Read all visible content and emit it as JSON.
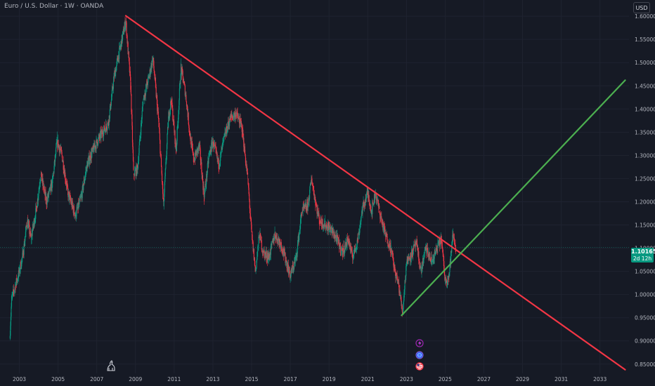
{
  "header": {
    "symbol_title": "Euro / U.S. Dollar · 1W · OANDA",
    "currency_button": "USD"
  },
  "price_tag": {
    "price": "1.10165",
    "countdown": "2d 12h",
    "color": "#089981"
  },
  "colors": {
    "background": "#161a25",
    "grid": "#1f2330",
    "up_candle": "#089981",
    "down_candle": "#f23645",
    "resistance_line": "#f23645",
    "support_line": "#4caf50",
    "axis_text": "#b2b5be"
  },
  "event_icons": [
    "lightning-icon",
    "globe-icon",
    "us-flag-icon"
  ],
  "chart_data": {
    "type": "line",
    "title": "Euro / U.S. Dollar · 1W · OANDA",
    "xlabel": "",
    "ylabel": "",
    "x_range": [
      2002.0,
      2034.5
    ],
    "ylim": [
      0.83,
      1.635
    ],
    "grid": true,
    "x_ticks": [
      "2003",
      "2005",
      "2007",
      "2009",
      "2011",
      "2013",
      "2015",
      "2017",
      "2019",
      "2021",
      "2023",
      "2025",
      "2027",
      "2029",
      "2031",
      "2033"
    ],
    "y_ticks": [
      "0.85000",
      "0.90000",
      "0.95000",
      "1.00000",
      "1.05000",
      "1.10000",
      "1.15000",
      "1.20000",
      "1.25000",
      "1.30000",
      "1.35000",
      "1.40000",
      "1.45000",
      "1.50000",
      "1.55000",
      "1.60000"
    ],
    "last_price": 1.10165,
    "series": [
      {
        "values": [
          [
            2002.5,
            0.905
          ],
          [
            2002.6,
            0.99
          ],
          [
            2002.8,
            1.02
          ],
          [
            2003.0,
            1.05
          ],
          [
            2003.2,
            1.09
          ],
          [
            2003.4,
            1.16
          ],
          [
            2003.6,
            1.12
          ],
          [
            2003.9,
            1.19
          ],
          [
            2004.1,
            1.26
          ],
          [
            2004.4,
            1.2
          ],
          [
            2004.7,
            1.24
          ],
          [
            2004.95,
            1.33
          ],
          [
            2005.2,
            1.3
          ],
          [
            2005.5,
            1.22
          ],
          [
            2005.9,
            1.17
          ],
          [
            2006.2,
            1.21
          ],
          [
            2006.5,
            1.28
          ],
          [
            2006.9,
            1.32
          ],
          [
            2007.3,
            1.35
          ],
          [
            2007.6,
            1.37
          ],
          [
            2007.9,
            1.47
          ],
          [
            2008.2,
            1.53
          ],
          [
            2008.5,
            1.59
          ],
          [
            2008.75,
            1.45
          ],
          [
            2008.9,
            1.26
          ],
          [
            2009.1,
            1.27
          ],
          [
            2009.4,
            1.42
          ],
          [
            2009.7,
            1.47
          ],
          [
            2009.9,
            1.51
          ],
          [
            2010.2,
            1.37
          ],
          [
            2010.45,
            1.19
          ],
          [
            2010.7,
            1.38
          ],
          [
            2010.85,
            1.42
          ],
          [
            2011.1,
            1.31
          ],
          [
            2011.35,
            1.49
          ],
          [
            2011.6,
            1.43
          ],
          [
            2011.8,
            1.35
          ],
          [
            2012.0,
            1.29
          ],
          [
            2012.3,
            1.32
          ],
          [
            2012.55,
            1.21
          ],
          [
            2012.8,
            1.3
          ],
          [
            2013.0,
            1.33
          ],
          [
            2013.3,
            1.28
          ],
          [
            2013.6,
            1.34
          ],
          [
            2013.9,
            1.38
          ],
          [
            2014.2,
            1.39
          ],
          [
            2014.5,
            1.36
          ],
          [
            2014.8,
            1.25
          ],
          [
            2015.0,
            1.13
          ],
          [
            2015.2,
            1.05
          ],
          [
            2015.4,
            1.13
          ],
          [
            2015.6,
            1.09
          ],
          [
            2015.9,
            1.08
          ],
          [
            2016.2,
            1.13
          ],
          [
            2016.5,
            1.11
          ],
          [
            2016.8,
            1.07
          ],
          [
            2017.0,
            1.04
          ],
          [
            2017.3,
            1.08
          ],
          [
            2017.6,
            1.18
          ],
          [
            2017.9,
            1.19
          ],
          [
            2018.1,
            1.25
          ],
          [
            2018.3,
            1.2
          ],
          [
            2018.5,
            1.16
          ],
          [
            2018.8,
            1.15
          ],
          [
            2019.1,
            1.14
          ],
          [
            2019.4,
            1.12
          ],
          [
            2019.7,
            1.09
          ],
          [
            2020.0,
            1.12
          ],
          [
            2020.2,
            1.08
          ],
          [
            2020.5,
            1.12
          ],
          [
            2020.7,
            1.18
          ],
          [
            2021.0,
            1.22
          ],
          [
            2021.2,
            1.18
          ],
          [
            2021.4,
            1.22
          ],
          [
            2021.6,
            1.18
          ],
          [
            2021.9,
            1.13
          ],
          [
            2022.2,
            1.1
          ],
          [
            2022.4,
            1.05
          ],
          [
            2022.6,
            1.02
          ],
          [
            2022.8,
            0.96
          ],
          [
            2023.0,
            1.07
          ],
          [
            2023.3,
            1.09
          ],
          [
            2023.5,
            1.11
          ],
          [
            2023.75,
            1.05
          ],
          [
            2024.0,
            1.1
          ],
          [
            2024.3,
            1.07
          ],
          [
            2024.6,
            1.1
          ],
          [
            2024.8,
            1.12
          ],
          [
            2025.0,
            1.03
          ],
          [
            2025.2,
            1.04
          ],
          [
            2025.4,
            1.13
          ],
          [
            2025.55,
            1.10165
          ]
        ]
      }
    ],
    "trendlines": [
      {
        "color": "#f23645",
        "points": [
          [
            2008.5,
            1.601
          ],
          [
            2034.3,
            0.838
          ]
        ]
      },
      {
        "color": "#4caf50",
        "points": [
          [
            2022.75,
            0.955
          ],
          [
            2034.3,
            1.462
          ]
        ]
      }
    ]
  }
}
